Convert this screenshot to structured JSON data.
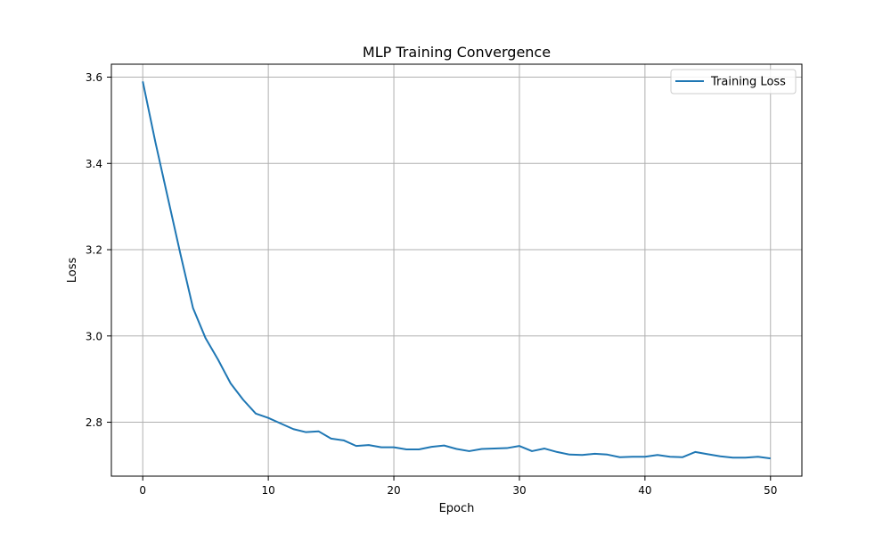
{
  "chart_data": {
    "type": "line",
    "title": "MLP Training Convergence",
    "xlabel": "Epoch",
    "ylabel": "Loss",
    "xlim": [
      -2.5,
      52.5
    ],
    "ylim": [
      2.675,
      3.63
    ],
    "xticks": [
      0,
      10,
      20,
      30,
      40,
      50
    ],
    "yticks": [
      2.8,
      3.0,
      3.2,
      3.4,
      3.6
    ],
    "ytick_labels": [
      "2.8",
      "3.0",
      "3.2",
      "3.4",
      "3.6"
    ],
    "grid": true,
    "legend_position": "top-right",
    "series": [
      {
        "name": "Training Loss",
        "color": "#1f77b4",
        "x": [
          0,
          1,
          2,
          3,
          4,
          5,
          6,
          7,
          8,
          9,
          10,
          11,
          12,
          13,
          14,
          15,
          16,
          17,
          18,
          19,
          20,
          21,
          22,
          23,
          24,
          25,
          26,
          27,
          28,
          29,
          30,
          31,
          32,
          33,
          34,
          35,
          36,
          37,
          38,
          39,
          40,
          41,
          42,
          43,
          44,
          45,
          46,
          47,
          48,
          49,
          50
        ],
        "y": [
          3.59,
          3.45,
          3.32,
          3.19,
          3.065,
          2.995,
          2.945,
          2.89,
          2.852,
          2.82,
          2.81,
          2.797,
          2.784,
          2.777,
          2.779,
          2.762,
          2.758,
          2.745,
          2.747,
          2.742,
          2.742,
          2.737,
          2.737,
          2.743,
          2.746,
          2.738,
          2.733,
          2.738,
          2.739,
          2.74,
          2.745,
          2.733,
          2.739,
          2.731,
          2.725,
          2.724,
          2.727,
          2.725,
          2.719,
          2.72,
          2.72,
          2.724,
          2.72,
          2.719,
          2.731,
          2.726,
          2.721,
          2.718,
          2.718,
          2.72,
          2.716
        ]
      }
    ]
  }
}
